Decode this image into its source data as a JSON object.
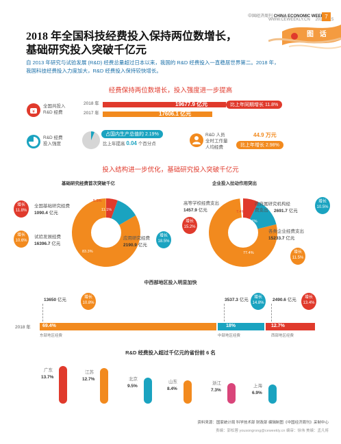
{
  "header": {
    "mag_cn": "中国经济周刊",
    "mag_en": "CHINA ECONOMIC WEEKLY",
    "website": "WWW.CEWEEKLY.CN",
    "date": "2019.9.15",
    "page": "7",
    "tag": "图 话"
  },
  "title": {
    "line1": "2018 年全国科技经费投入保持两位数增长，",
    "line2": "基础研究投入突破千亿元"
  },
  "intro": {
    "line1": "自 2013 年研究与试验发展 (R&D) 经费总量超过日本以来，我国的 R&D 经费投入一直稳居世界第二。2018 年，",
    "line2": "我国科技经费投入力度加大，R&D 经费投入保持较快增长。"
  },
  "section1": {
    "title": "经费保持两位数增长，投入强度进一步提高",
    "rd_total_label": "全国共投入\nR&D 经费",
    "year2018": "2018 年",
    "year2017": "2017 年",
    "value2018": "19677.9 亿元",
    "value2017": "17606.1 亿元",
    "growth_pill": "比上年同期增长 11.8%",
    "intensity_label": "R&D 经费\n投入强度",
    "gdp_pill": "占国内生产总值的 2.19%",
    "gdp_compare_pre": "比上年提高",
    "gdp_compare_val": "0.04",
    "gdp_compare_post": "个百分点",
    "staff_label": "R&D 人员\n全时工作量\n人均经费",
    "staff_value": "44.9 万元",
    "staff_pill": "比上年增长 2.98%"
  },
  "section2": {
    "title": "投入结构进一步优化，基础研究投入突破千亿元",
    "left_title": "基础研究经费首次突破千亿",
    "right_title": "企业投入拉动作用突出",
    "left": {
      "basic_label": "全国基础研究经费",
      "basic_value": "1090.4",
      "basic_growth": "增长\n11.8%",
      "exp_label": "试验发展经费",
      "exp_value": "16396.7",
      "exp_growth": "增长\n10.6%",
      "applied_label": "应用研究经费",
      "applied_value": "2190.9",
      "applied_growth": "增长\n18.5%",
      "unit": "亿元",
      "pct_basic": "5.5%",
      "pct_applied": "11.1%",
      "pct_exp": "83.3%"
    },
    "right": {
      "uni_label": "高等学校经费支出",
      "uni_value": "1457.9",
      "uni_growth": "增长\n15.2%",
      "gov_label": "政府属研究机构经\n费支出",
      "gov_value": "2691.7",
      "gov_growth": "增长\n10.5%",
      "ent_label": "各类企业经费支出",
      "ent_value": "15233.7",
      "ent_growth": "增长\n11.5%",
      "unit": "亿元",
      "pct_uni": "7.4%",
      "pct_gov": "13.7%",
      "pct_ent": "77.4%"
    }
  },
  "section3": {
    "title": "中西部地区投入明显加快",
    "year": "2018 年",
    "east_value": "13650",
    "east_growth": "增长\n10.8%",
    "central_value": "3537.3",
    "central_growth": "增长\n14.8%",
    "west_value": "2490.6",
    "west_growth": "增长\n13.4%",
    "unit": "亿元",
    "east_pct": "69.4%",
    "central_pct": "18%",
    "west_pct": "12.7%",
    "east_label": "东部地区经费",
    "central_label": "中部地区经费",
    "west_label": "西部地区经费"
  },
  "section4": {
    "title": "R&D 经费投入超过千亿元的省份前 6 名",
    "provinces": [
      {
        "name": "广东",
        "value": "13.7%"
      },
      {
        "name": "江苏",
        "value": "12.7%"
      },
      {
        "name": "北京",
        "value": "9.5%"
      },
      {
        "name": "山东",
        "value": "8.4%"
      },
      {
        "name": "浙江",
        "value": "7.3%"
      },
      {
        "name": "上海",
        "value": "6.9%"
      }
    ]
  },
  "footer": {
    "source": "资料来源：国家统计局 科学技术部 财政部    编辑制图《中国经济周刊》采制中心",
    "credits": "责编：郭松蓉 yousongrong@ceweekly.cn  编审：徐伟  美编：孟凡将"
  },
  "colors": {
    "red": "#e03a2c",
    "orange": "#f28a1e",
    "teal": "#1aa3c0",
    "pink": "#d9457a",
    "gray": "#999999"
  },
  "icons": [
    "money-bag-icon",
    "pie-chart-icon",
    "person-icon",
    "decorative-ribbon-icon"
  ]
}
